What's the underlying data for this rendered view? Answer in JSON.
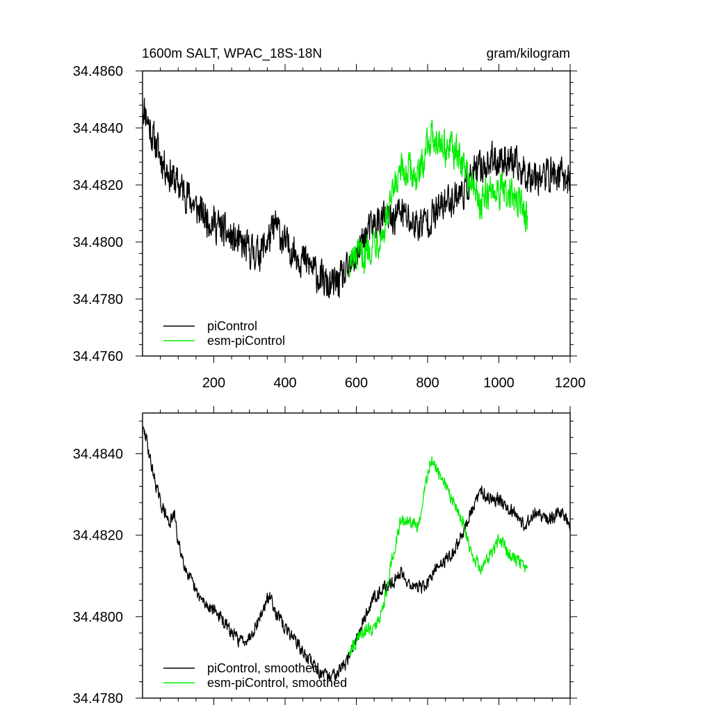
{
  "chart_data": [
    {
      "type": "line",
      "title": "1600m SALT, WPAC_18S-18N",
      "units": "gram/kilogram",
      "xlim": [
        0,
        1200
      ],
      "ylim": [
        34.476,
        34.486
      ],
      "x_ticks": [
        "200",
        "400",
        "600",
        "800",
        "1000",
        "1200"
      ],
      "y_ticks": [
        "34.4760",
        "34.4780",
        "34.4800",
        "34.4820",
        "34.4840",
        "34.4860"
      ],
      "grid": false,
      "legend": "bottom-left",
      "series": [
        {
          "name": "piControl",
          "color": "#000000",
          "x": [
            0,
            10,
            25,
            50,
            75,
            100,
            125,
            150,
            175,
            200,
            225,
            250,
            275,
            300,
            325,
            350,
            375,
            400,
            425,
            450,
            475,
            500,
            525,
            550,
            575,
            600,
            625,
            650,
            675,
            700,
            725,
            750,
            775,
            800,
            825,
            850,
            875,
            900,
            925,
            950,
            975,
            1000,
            1025,
            1050,
            1075,
            1100,
            1125,
            1150,
            1175,
            1200
          ],
          "y": [
            34.4848,
            34.4845,
            34.4838,
            34.483,
            34.4824,
            34.482,
            34.4817,
            34.4812,
            34.4809,
            34.4807,
            34.4804,
            34.4801,
            34.4799,
            34.4797,
            34.4796,
            34.48,
            34.4806,
            34.4799,
            34.4797,
            34.4794,
            34.4791,
            34.4787,
            34.4784,
            34.4786,
            34.4789,
            34.4795,
            34.4802,
            34.4806,
            34.4808,
            34.4808,
            34.4811,
            34.4807,
            34.4806,
            34.4808,
            34.481,
            34.4814,
            34.4816,
            34.4818,
            34.4823,
            34.4826,
            34.4828,
            34.4829,
            34.4829,
            34.4826,
            34.4824,
            34.4824,
            34.4823,
            34.4824,
            34.4823,
            34.4822
          ]
        },
        {
          "name": "esm-piControl",
          "color": "#00ee00",
          "x": [
            580,
            600,
            625,
            650,
            675,
            700,
            725,
            750,
            775,
            800,
            825,
            850,
            875,
            900,
            925,
            950,
            975,
            1000,
            1025,
            1050,
            1080
          ],
          "y": [
            34.4793,
            34.4794,
            34.4796,
            34.4801,
            34.4803,
            34.4815,
            34.4824,
            34.4825,
            34.4822,
            34.4836,
            34.4837,
            34.4833,
            34.4832,
            34.4827,
            34.482,
            34.4813,
            34.4818,
            34.4819,
            34.4816,
            34.4815,
            34.4809
          ]
        }
      ]
    },
    {
      "type": "line",
      "xlim": [
        0,
        1200
      ],
      "ylim": [
        34.478,
        34.485
      ],
      "y_ticks": [
        "34.4780",
        "34.4800",
        "34.4820",
        "34.4840"
      ],
      "grid": false,
      "legend": "bottom-left",
      "series": [
        {
          "name": "piControl, smoothed",
          "color": "#000000",
          "x": [
            0,
            10,
            25,
            50,
            75,
            90,
            100,
            125,
            150,
            175,
            200,
            225,
            250,
            275,
            300,
            325,
            350,
            360,
            375,
            400,
            425,
            450,
            475,
            500,
            525,
            550,
            575,
            600,
            625,
            650,
            675,
            700,
            725,
            750,
            775,
            800,
            825,
            850,
            875,
            900,
            925,
            950,
            975,
            1000,
            1025,
            1050,
            1075,
            1100,
            1125,
            1150,
            1175,
            1200
          ],
          "y": [
            34.4846,
            34.4844,
            34.4837,
            34.4828,
            34.4823,
            34.4825,
            34.4818,
            34.4811,
            34.4806,
            34.4803,
            34.4802,
            34.4799,
            34.4796,
            34.4794,
            34.4795,
            34.4799,
            34.4804,
            34.4805,
            34.4801,
            34.4797,
            34.4795,
            34.4791,
            34.4789,
            34.4786,
            34.4785,
            34.4787,
            34.4789,
            34.4795,
            34.48,
            34.4805,
            34.4807,
            34.4808,
            34.4811,
            34.4808,
            34.4807,
            34.4808,
            34.4812,
            34.4814,
            34.4816,
            34.4821,
            34.4826,
            34.4831,
            34.4829,
            34.4829,
            34.4827,
            34.4825,
            34.4822,
            34.4826,
            34.4824,
            34.4824,
            34.4826,
            34.4822
          ]
        },
        {
          "name": "esm-piControl, smoothed",
          "color": "#00ee00",
          "x": [
            580,
            600,
            625,
            650,
            675,
            700,
            725,
            750,
            775,
            800,
            810,
            825,
            850,
            875,
            900,
            925,
            950,
            975,
            1000,
            1025,
            1050,
            1080
          ],
          "y": [
            34.4791,
            34.4794,
            34.4797,
            34.4797,
            34.4802,
            34.4814,
            34.4824,
            34.4823,
            34.4822,
            34.4835,
            34.4839,
            34.4836,
            34.4832,
            34.4828,
            34.4823,
            34.4815,
            34.4812,
            34.4815,
            34.4819,
            34.4816,
            34.4814,
            34.4811
          ]
        }
      ]
    }
  ]
}
